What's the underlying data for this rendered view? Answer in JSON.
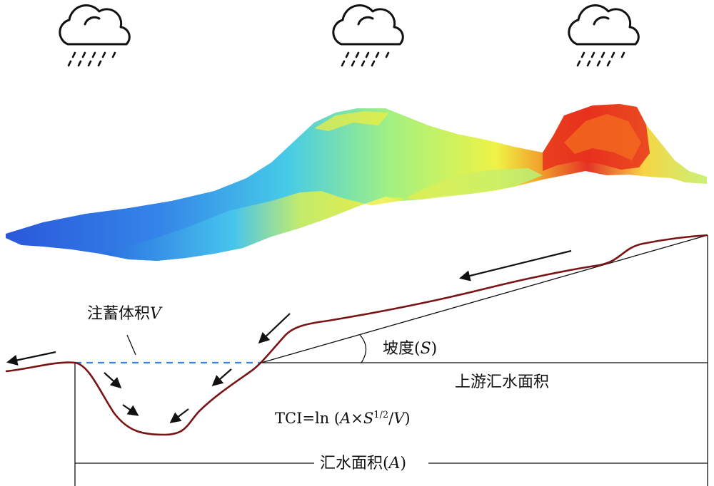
{
  "labels": {
    "storage_volume": {
      "text": "注蓄体积",
      "var": "V"
    },
    "slope": {
      "text": "坡度(",
      "var": "S",
      "close": ")"
    },
    "upstream_area": "上游汇水面积",
    "formula": {
      "prefix": "TCI=ln (",
      "a": "A",
      "times": "×",
      "s": "S",
      "exponent": "1/2",
      "slash": "/",
      "v": "V",
      "close": ")"
    },
    "catchment_area": {
      "text": "汇水面积(",
      "var": "A",
      "close": ")"
    }
  },
  "icons": [
    "rain-cloud-icon",
    "rain-cloud-icon",
    "rain-cloud-icon"
  ],
  "colors": {
    "terrain_gradient": [
      "#1e4fd8",
      "#2a9df0",
      "#39d6d0",
      "#b8f060",
      "#f2f038",
      "#f07a1c",
      "#e0221a"
    ],
    "profile_line": "#7a1414",
    "water_level": "#3b7fe0",
    "lines": "#111111"
  }
}
